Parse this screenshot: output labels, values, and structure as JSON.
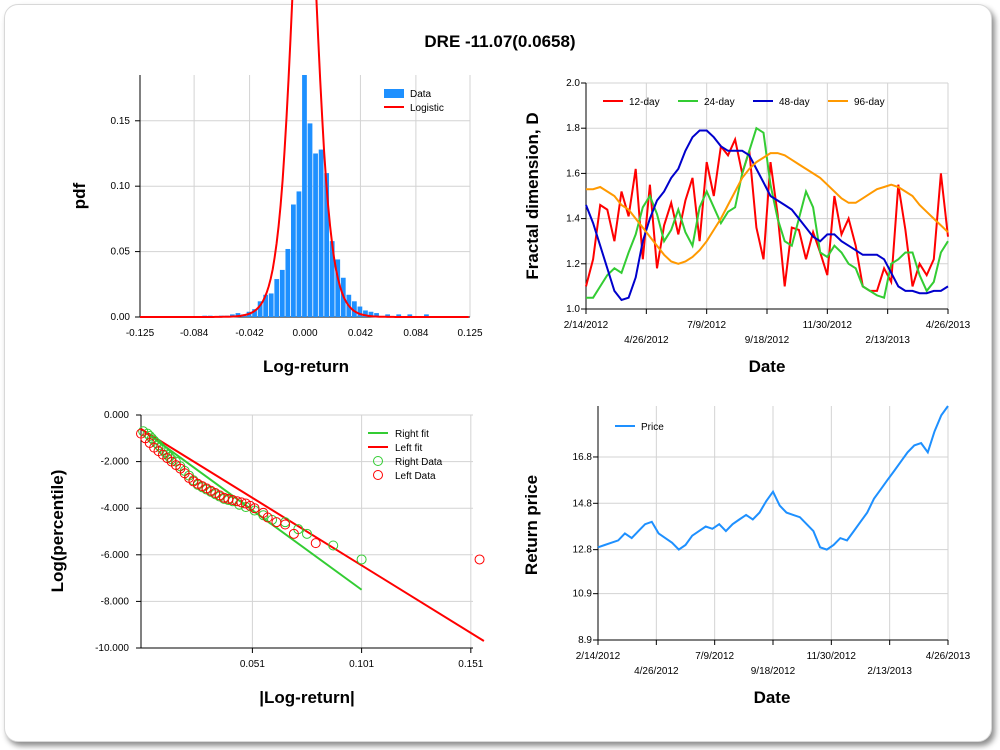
{
  "title": "DRE -11.07(0.0658)",
  "chart_data": [
    {
      "type": "bar",
      "xlabel": "Log-return",
      "ylabel": "pdf",
      "xlim": [
        -0.125,
        0.125
      ],
      "ylim": [
        0,
        0.185
      ],
      "xticks": [
        "-0.125",
        "-0.084",
        "-0.042",
        "0.000",
        "0.042",
        "0.084",
        "0.125"
      ],
      "yticks": [
        "0.00",
        "0.05",
        "0.10",
        "0.15"
      ],
      "legend": [
        "Data",
        "Logistic"
      ],
      "legend_position": "top-right",
      "colors": {
        "Data": "#1e90ff",
        "Logistic": "#ff0000"
      },
      "bin_width": 0.0042,
      "hist": [
        {
          "x": -0.076,
          "y": 0.001
        },
        {
          "x": -0.0718,
          "y": 0.001
        },
        {
          "x": -0.0634,
          "y": 0.001
        },
        {
          "x": -0.0592,
          "y": 0.001
        },
        {
          "x": -0.055,
          "y": 0.002
        },
        {
          "x": -0.0508,
          "y": 0.003
        },
        {
          "x": -0.0466,
          "y": 0.002
        },
        {
          "x": -0.0424,
          "y": 0.004
        },
        {
          "x": -0.0382,
          "y": 0.006
        },
        {
          "x": -0.034,
          "y": 0.012
        },
        {
          "x": -0.0298,
          "y": 0.017
        },
        {
          "x": -0.0256,
          "y": 0.018
        },
        {
          "x": -0.0214,
          "y": 0.029
        },
        {
          "x": -0.0172,
          "y": 0.036
        },
        {
          "x": -0.013,
          "y": 0.052
        },
        {
          "x": -0.0088,
          "y": 0.086
        },
        {
          "x": -0.0046,
          "y": 0.096
        },
        {
          "x": -0.0004,
          "y": 0.187
        },
        {
          "x": 0.0038,
          "y": 0.148
        },
        {
          "x": 0.008,
          "y": 0.125
        },
        {
          "x": 0.0122,
          "y": 0.128
        },
        {
          "x": 0.0164,
          "y": 0.11
        },
        {
          "x": 0.0206,
          "y": 0.058
        },
        {
          "x": 0.0248,
          "y": 0.044
        },
        {
          "x": 0.029,
          "y": 0.03
        },
        {
          "x": 0.0332,
          "y": 0.017
        },
        {
          "x": 0.0374,
          "y": 0.012
        },
        {
          "x": 0.0416,
          "y": 0.008
        },
        {
          "x": 0.0458,
          "y": 0.005
        },
        {
          "x": 0.05,
          "y": 0.004
        },
        {
          "x": 0.0542,
          "y": 0.003
        },
        {
          "x": 0.0626,
          "y": 0.002
        },
        {
          "x": 0.071,
          "y": 0.002
        },
        {
          "x": 0.0794,
          "y": 0.002
        },
        {
          "x": 0.092,
          "y": 0.002
        }
      ],
      "logistic": {
        "mu": -0.0005,
        "s": 0.0065
      }
    },
    {
      "type": "line",
      "xlabel": "Date",
      "ylabel": "Fractal dimension, D",
      "ylim": [
        1.0,
        2.0
      ],
      "yticks": [
        "1.0",
        "1.2",
        "1.4",
        "1.6",
        "1.8",
        "2.0"
      ],
      "xticks_top": [
        "2/14/2012",
        "7/9/2012",
        "11/30/2012",
        "4/26/2013"
      ],
      "xticks_bottom": [
        "4/26/2012",
        "9/18/2012",
        "2/13/2013"
      ],
      "legend_position": "top-left",
      "series": [
        {
          "name": "12-day",
          "color": "#ff0000",
          "values": [
            1.1,
            1.22,
            1.46,
            1.44,
            1.3,
            1.52,
            1.41,
            1.62,
            1.22,
            1.55,
            1.18,
            1.37,
            1.47,
            1.33,
            1.48,
            1.58,
            1.3,
            1.65,
            1.5,
            1.72,
            1.68,
            1.75,
            1.6,
            1.7,
            1.36,
            1.22,
            1.65,
            1.42,
            1.1,
            1.36,
            1.35,
            1.22,
            1.34,
            1.25,
            1.15,
            1.5,
            1.33,
            1.4,
            1.28,
            1.1,
            1.08,
            1.08,
            1.18,
            1.12,
            1.55,
            1.35,
            1.1,
            1.2,
            1.15,
            1.22,
            1.6,
            1.32
          ]
        },
        {
          "name": "24-day",
          "color": "#33cc33",
          "values": [
            1.05,
            1.05,
            1.1,
            1.15,
            1.18,
            1.16,
            1.25,
            1.33,
            1.45,
            1.5,
            1.42,
            1.3,
            1.35,
            1.44,
            1.34,
            1.28,
            1.45,
            1.52,
            1.45,
            1.38,
            1.43,
            1.45,
            1.6,
            1.7,
            1.8,
            1.78,
            1.55,
            1.4,
            1.3,
            1.28,
            1.4,
            1.52,
            1.45,
            1.25,
            1.23,
            1.28,
            1.25,
            1.2,
            1.18,
            1.1,
            1.08,
            1.06,
            1.05,
            1.2,
            1.22,
            1.25,
            1.25,
            1.15,
            1.08,
            1.12,
            1.25,
            1.3
          ]
        },
        {
          "name": "48-day",
          "color": "#0000cc",
          "values": [
            1.46,
            1.38,
            1.28,
            1.18,
            1.08,
            1.04,
            1.05,
            1.14,
            1.3,
            1.4,
            1.48,
            1.52,
            1.58,
            1.62,
            1.7,
            1.76,
            1.79,
            1.79,
            1.76,
            1.72,
            1.7,
            1.7,
            1.7,
            1.68,
            1.62,
            1.56,
            1.5,
            1.48,
            1.46,
            1.44,
            1.4,
            1.36,
            1.32,
            1.3,
            1.33,
            1.33,
            1.3,
            1.28,
            1.26,
            1.24,
            1.24,
            1.24,
            1.22,
            1.16,
            1.1,
            1.08,
            1.08,
            1.07,
            1.07,
            1.08,
            1.08,
            1.1
          ]
        },
        {
          "name": "96-day",
          "color": "#ff9900",
          "values": [
            1.53,
            1.53,
            1.54,
            1.52,
            1.5,
            1.46,
            1.44,
            1.4,
            1.36,
            1.32,
            1.28,
            1.24,
            1.21,
            1.2,
            1.21,
            1.23,
            1.26,
            1.3,
            1.35,
            1.4,
            1.46,
            1.52,
            1.58,
            1.62,
            1.65,
            1.67,
            1.69,
            1.69,
            1.68,
            1.66,
            1.64,
            1.62,
            1.6,
            1.58,
            1.55,
            1.52,
            1.49,
            1.47,
            1.47,
            1.49,
            1.51,
            1.53,
            1.54,
            1.55,
            1.54,
            1.52,
            1.5,
            1.46,
            1.43,
            1.4,
            1.37,
            1.34
          ]
        }
      ]
    },
    {
      "type": "scatter",
      "xlabel": "|Log-return|",
      "ylabel": "Log(percentile)",
      "xlim": [
        0,
        0.152
      ],
      "ylim": [
        -10,
        0
      ],
      "xticks": [
        "0.051",
        "0.101",
        "0.151"
      ],
      "xtick_values": [
        0.051,
        0.101,
        0.151
      ],
      "yticks": [
        "0.000",
        "-2.000",
        "-4.000",
        "-6.000",
        "-8.000",
        "-10.000"
      ],
      "legend_position": "top-right",
      "lines": [
        {
          "name": "Right fit",
          "color": "#33cc33",
          "x": [
            0.0,
            0.101
          ],
          "y": [
            -0.6,
            -7.5
          ]
        },
        {
          "name": "Left fit",
          "color": "#ff0000",
          "x": [
            0.0,
            0.157
          ],
          "y": [
            -0.6,
            -9.7
          ]
        }
      ],
      "points": [
        {
          "name": "Right Data",
          "color": "#33cc33",
          "x": [
            0.001,
            0.003,
            0.004,
            0.005,
            0.006,
            0.007,
            0.008,
            0.009,
            0.01,
            0.011,
            0.012,
            0.013,
            0.014,
            0.016,
            0.018,
            0.02,
            0.022,
            0.024,
            0.026,
            0.028,
            0.03,
            0.032,
            0.034,
            0.036,
            0.038,
            0.04,
            0.042,
            0.045,
            0.048,
            0.052,
            0.056,
            0.06,
            0.066,
            0.072,
            0.076,
            0.088,
            0.101
          ],
          "y": [
            -0.7,
            -0.8,
            -0.9,
            -1.0,
            -1.1,
            -1.2,
            -1.3,
            -1.4,
            -1.5,
            -1.6,
            -1.7,
            -1.8,
            -1.9,
            -2.0,
            -2.2,
            -2.4,
            -2.6,
            -2.8,
            -3.0,
            -3.1,
            -3.2,
            -3.3,
            -3.4,
            -3.5,
            -3.6,
            -3.65,
            -3.7,
            -3.85,
            -3.95,
            -4.1,
            -4.3,
            -4.5,
            -4.6,
            -4.9,
            -5.1,
            -5.6,
            -6.2
          ]
        },
        {
          "name": "Left Data",
          "color": "#ff0000",
          "x": [
            0.0,
            0.002,
            0.004,
            0.006,
            0.008,
            0.01,
            0.012,
            0.014,
            0.016,
            0.018,
            0.02,
            0.022,
            0.024,
            0.026,
            0.028,
            0.03,
            0.032,
            0.034,
            0.036,
            0.038,
            0.04,
            0.042,
            0.044,
            0.046,
            0.048,
            0.05,
            0.052,
            0.056,
            0.058,
            0.062,
            0.066,
            0.07,
            0.08,
            0.155
          ],
          "y": [
            -0.8,
            -1.0,
            -1.2,
            -1.4,
            -1.55,
            -1.7,
            -1.85,
            -2.0,
            -2.15,
            -2.3,
            -2.5,
            -2.7,
            -2.85,
            -2.95,
            -3.05,
            -3.15,
            -3.25,
            -3.35,
            -3.45,
            -3.55,
            -3.6,
            -3.65,
            -3.7,
            -3.75,
            -3.8,
            -3.9,
            -4.0,
            -4.2,
            -4.4,
            -4.6,
            -4.7,
            -5.1,
            -5.5,
            -6.2
          ]
        }
      ]
    },
    {
      "type": "line",
      "xlabel": "Date",
      "ylabel": "Return price",
      "ylim": [
        8.9,
        19.0
      ],
      "yticks": [
        "8.9",
        "10.9",
        "12.8",
        "14.8",
        "16.8"
      ],
      "ytick_values": [
        8.9,
        10.9,
        12.8,
        14.8,
        16.8
      ],
      "xticks_top": [
        "2/14/2012",
        "7/9/2012",
        "11/30/2012",
        "4/26/2013"
      ],
      "xticks_bottom": [
        "4/26/2012",
        "9/18/2012",
        "2/13/2013"
      ],
      "legend_position": "top-left",
      "series": [
        {
          "name": "Price",
          "color": "#1e90ff",
          "values": [
            12.9,
            13.0,
            13.1,
            13.2,
            13.5,
            13.3,
            13.6,
            13.9,
            14.0,
            13.5,
            13.3,
            13.1,
            12.8,
            13.0,
            13.4,
            13.6,
            13.8,
            13.7,
            13.9,
            13.6,
            13.9,
            14.1,
            14.3,
            14.1,
            14.4,
            14.9,
            15.3,
            14.7,
            14.4,
            14.3,
            14.2,
            13.9,
            13.6,
            12.9,
            12.8,
            13.0,
            13.3,
            13.2,
            13.6,
            14.0,
            14.4,
            15.0,
            15.4,
            15.8,
            16.2,
            16.6,
            17.0,
            17.3,
            17.4,
            17.0,
            17.9,
            18.6,
            19.0
          ]
        }
      ]
    }
  ]
}
